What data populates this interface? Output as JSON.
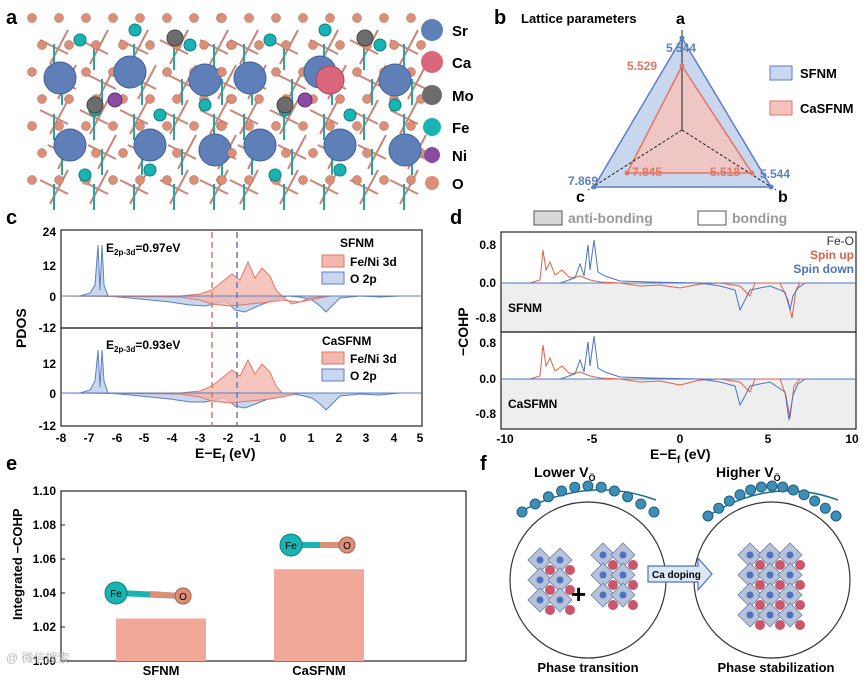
{
  "panels": {
    "a": {
      "letter": "a",
      "legend": [
        {
          "name": "Sr",
          "color": "#5f7fb8"
        },
        {
          "name": "Ca",
          "color": "#d9667a"
        },
        {
          "name": "Mo",
          "color": "#6c6c6c"
        },
        {
          "name": "Fe",
          "color": "#19b3b3"
        },
        {
          "name": "Ni",
          "color": "#8a4ca3"
        },
        {
          "name": "O",
          "color": "#dc8f78"
        }
      ]
    },
    "b": {
      "letter": "b",
      "title": "Lattice parameters",
      "axes": [
        "a",
        "b",
        "c"
      ],
      "series": [
        {
          "name": "SFNM",
          "color": "#5b7fc0",
          "fill": "#c8d6ee",
          "values": {
            "a": "5.544",
            "b": "5.544",
            "c": "7.869"
          }
        },
        {
          "name": "CaSFNM",
          "color": "#e07766",
          "fill": "#f4c3bb",
          "values": {
            "a": "5.529",
            "b": "5.518",
            "c": "7.845"
          }
        }
      ]
    },
    "c": {
      "letter": "c",
      "ylabel": "PDOS",
      "xlabel": "E−E",
      "xlabel_sub": "f",
      "xlabel_unit": " (eV)",
      "xticks": [
        "-8",
        "-7",
        "-6",
        "-5",
        "-4",
        "-3",
        "-2",
        "-1",
        "0",
        "1",
        "2",
        "3",
        "4",
        "5"
      ],
      "yticks_top": [
        "24",
        "12",
        "0",
        "-12"
      ],
      "yticks_bottom": [
        "24",
        "12",
        "0",
        "-12"
      ],
      "top": {
        "material": "SFNM",
        "gap_prefix": "E",
        "gap_sub": "2p-3d",
        "gap_value": "=0.97eV"
      },
      "bottom": {
        "material": "CaSFNM",
        "gap_prefix": "E",
        "gap_sub": "2p-3d",
        "gap_value": "=0.93eV"
      },
      "legend": [
        "Fe/Ni 3d",
        "O 2p"
      ]
    },
    "d": {
      "letter": "d",
      "ylabel": "−COHP",
      "xlabel": "E−E",
      "xlabel_sub": "f",
      "xlabel_unit": " (eV)",
      "xticks": [
        "-10",
        "-5",
        "0",
        "5",
        "10"
      ],
      "yticks": [
        "0.8",
        "0.0",
        "-0.8"
      ],
      "anti_bonding": "anti-bonding",
      "bonding": "bonding",
      "top": {
        "material": "SFNM"
      },
      "bottom": {
        "material": "CaSFMN"
      },
      "legend": [
        {
          "label": "Fe-O",
          "color": "#333333"
        },
        {
          "label": "Spin up",
          "color": "#e0604a"
        },
        {
          "label": "Spin down",
          "color": "#4a73c4"
        }
      ]
    },
    "e": {
      "letter": "e",
      "ylabel": "Integrated −COHP",
      "fe_label": "Fe",
      "o_label": "O"
    },
    "f": {
      "letter": "f",
      "left_title": "Lower V",
      "right_title": "Higher V",
      "vo_sub": "Ö",
      "arrow_label": "Ca doping",
      "left_caption": "Phase transition",
      "right_caption": "Phase stabilization"
    }
  },
  "chart_data": [
    {
      "type": "bar",
      "title": "",
      "ylabel": "Integrated −COHP",
      "categories": [
        "SFNM",
        "CaSFNM"
      ],
      "values": [
        1.025,
        1.054
      ],
      "ylim": [
        1.0,
        1.1
      ],
      "yticks": [
        "1.00",
        "1.02",
        "1.04",
        "1.06",
        "1.08",
        "1.10"
      ],
      "color": "#f2a898"
    }
  ],
  "watermark": "@ 微信搜索"
}
